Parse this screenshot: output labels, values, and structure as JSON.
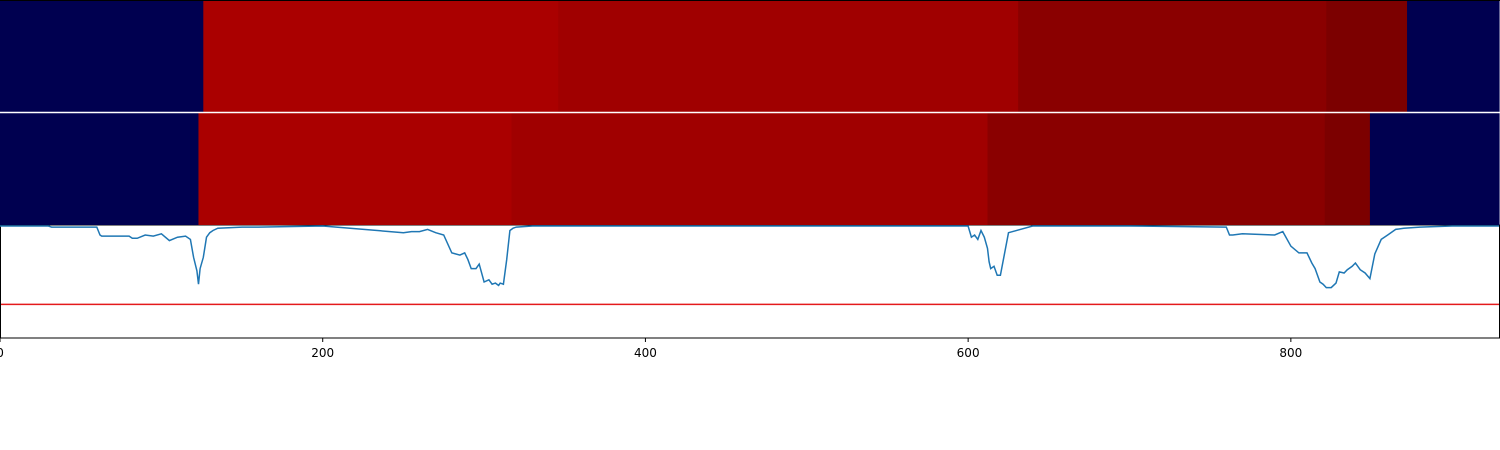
{
  "chart_data": [
    {
      "type": "heatmap",
      "colors": {
        "navy": "#000050",
        "red1": "#aa0000",
        "red2": "#a00000",
        "red3": "#8a0000",
        "red4": "#7c0000"
      },
      "segments": [
        {
          "start": 0,
          "end": 126,
          "color": "navy"
        },
        {
          "start": 126,
          "end": 346,
          "color": "red1"
        },
        {
          "start": 346,
          "end": 631,
          "color": "red2"
        },
        {
          "start": 631,
          "end": 822,
          "color": "red3"
        },
        {
          "start": 822,
          "end": 872,
          "color": "red4"
        },
        {
          "start": 872,
          "end": 929,
          "color": "navy"
        }
      ]
    },
    {
      "type": "heatmap",
      "colors": {
        "navy": "#000050",
        "red1": "#aa0000",
        "red2": "#a00000",
        "red3": "#8a0000",
        "red4": "#7c0000"
      },
      "segments": [
        {
          "start": 0,
          "end": 123,
          "color": "navy"
        },
        {
          "start": 123,
          "end": 317,
          "color": "red1"
        },
        {
          "start": 317,
          "end": 612,
          "color": "red2"
        },
        {
          "start": 612,
          "end": 821,
          "color": "red3"
        },
        {
          "start": 821,
          "end": 849,
          "color": "red4"
        },
        {
          "start": 849,
          "end": 929,
          "color": "navy"
        }
      ]
    },
    {
      "type": "line",
      "xlim": [
        0,
        929
      ],
      "ylim": [
        -1.0,
        0.0
      ],
      "xticks": [
        0,
        200,
        400,
        600,
        800
      ],
      "grid": false,
      "series_color": "#1f77b4",
      "threshold": {
        "value": -0.7,
        "color": "#e41a1c"
      },
      "x": [
        0,
        30,
        32,
        60,
        62,
        63,
        80,
        82,
        85,
        90,
        95,
        100,
        105,
        110,
        115,
        118,
        120,
        122,
        123,
        124,
        126,
        128,
        130,
        132,
        135,
        150,
        160,
        200,
        250,
        255,
        260,
        265,
        270,
        275,
        280,
        285,
        288,
        290,
        292,
        295,
        297,
        300,
        303,
        305,
        307,
        309,
        310,
        312,
        314,
        316,
        317,
        318,
        320,
        330,
        346,
        400,
        500,
        600,
        602,
        604,
        606,
        608,
        610,
        612,
        613,
        614,
        616,
        618,
        620,
        625,
        640,
        700,
        760,
        762,
        764,
        770,
        790,
        795,
        800,
        805,
        810,
        813,
        815,
        818,
        820,
        822,
        825,
        828,
        830,
        833,
        835,
        838,
        840,
        843,
        846,
        849,
        852,
        856,
        860,
        865,
        870,
        880,
        900,
        929
      ],
      "y": [
        0.0,
        0.0,
        -0.01,
        -0.01,
        -0.08,
        -0.09,
        -0.09,
        -0.11,
        -0.11,
        -0.08,
        -0.09,
        -0.07,
        -0.13,
        -0.1,
        -0.09,
        -0.12,
        -0.28,
        -0.4,
        -0.52,
        -0.38,
        -0.28,
        -0.1,
        -0.06,
        -0.04,
        -0.02,
        -0.01,
        -0.01,
        0.0,
        -0.06,
        -0.05,
        -0.05,
        -0.03,
        -0.06,
        -0.08,
        -0.24,
        -0.26,
        -0.24,
        -0.3,
        -0.38,
        -0.38,
        -0.34,
        -0.5,
        -0.48,
        -0.52,
        -0.51,
        -0.53,
        -0.51,
        -0.52,
        -0.3,
        -0.04,
        -0.03,
        -0.02,
        -0.01,
        0.0,
        0.0,
        0.0,
        0.0,
        0.0,
        -0.1,
        -0.08,
        -0.12,
        -0.04,
        -0.1,
        -0.2,
        -0.32,
        -0.38,
        -0.36,
        -0.44,
        -0.44,
        -0.06,
        0.0,
        0.0,
        -0.01,
        -0.08,
        -0.08,
        -0.07,
        -0.08,
        -0.05,
        -0.18,
        -0.24,
        -0.24,
        -0.33,
        -0.38,
        -0.5,
        -0.52,
        -0.55,
        -0.55,
        -0.51,
        -0.41,
        -0.42,
        -0.39,
        -0.36,
        -0.33,
        -0.39,
        -0.42,
        -0.47,
        -0.25,
        -0.12,
        -0.08,
        -0.03,
        -0.02,
        -0.01,
        0.0,
        0.0
      ]
    }
  ]
}
